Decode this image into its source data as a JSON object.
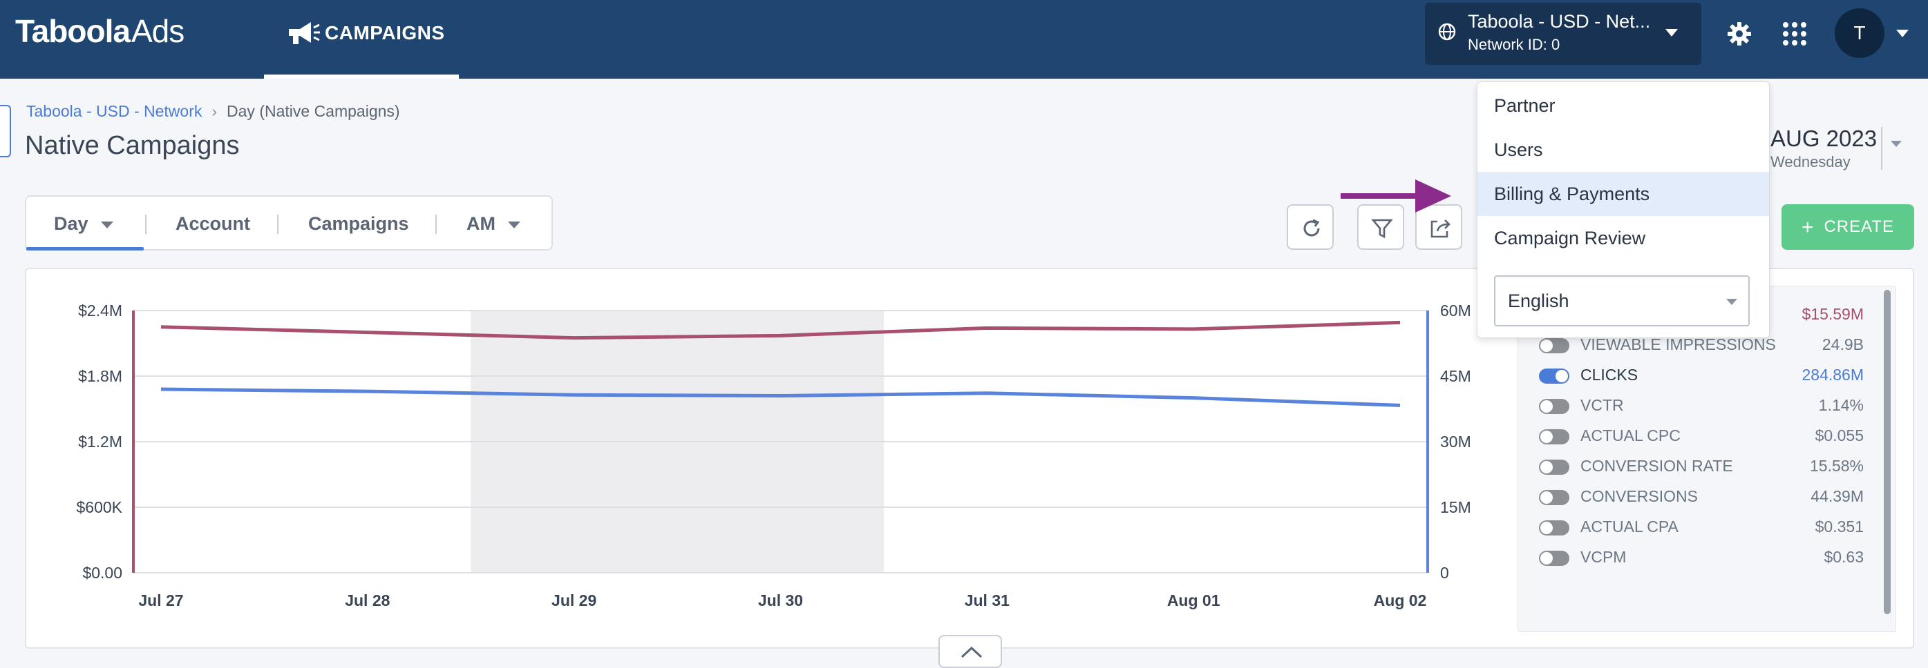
{
  "topbar": {
    "logo_bold": "Taboola",
    "logo_light": "Ads",
    "nav_campaigns": "CAMPAIGNS",
    "account_name": "Taboola - USD - Net...",
    "network_id": "Network ID: 0",
    "avatar_initial": "T"
  },
  "breadcrumb": {
    "root": "Taboola - USD - Network",
    "current": "Day (Native Campaigns)"
  },
  "page_title": "Native Campaigns",
  "date": {
    "month_year": "AUG 2023",
    "weekday": "Wednesday"
  },
  "tabs": [
    {
      "label": "Day"
    },
    {
      "label": "Account"
    },
    {
      "label": "Campaigns"
    },
    {
      "label": "AM"
    }
  ],
  "create_label": "CREATE",
  "menu": {
    "items": [
      "Partner",
      "Users",
      "Billing & Payments",
      "Campaign Review"
    ],
    "active_index": 2,
    "language": "English"
  },
  "chart_data": {
    "type": "line",
    "x": [
      "Jul 27",
      "Jul 28",
      "Jul 29",
      "Jul 30",
      "Jul 31",
      "Aug 01",
      "Aug 02"
    ],
    "y_left": {
      "ticks": [
        "$2.4M",
        "$1.8M",
        "$1.2M",
        "$600K",
        "$0.00"
      ],
      "range": [
        0,
        2400000
      ]
    },
    "y_right": {
      "ticks": [
        "60M",
        "45M",
        "30M",
        "15M",
        "0"
      ],
      "range": [
        0,
        60000000
      ]
    },
    "highlight_range": [
      "Jul 28",
      "Jul 30"
    ],
    "series": [
      {
        "axis": "left",
        "color": "#a8506e",
        "values": [
          2250000,
          2200000,
          2150000,
          2170000,
          2240000,
          2230000,
          2290000
        ]
      },
      {
        "axis": "right",
        "color": "#5a84dc",
        "values": [
          42000000,
          41500000,
          40700000,
          40500000,
          41100000,
          40000000,
          38300000
        ]
      }
    ]
  },
  "metrics": [
    {
      "name": "",
      "value": "$15.59M",
      "on": false,
      "color": "#a8506e"
    },
    {
      "name": "VIEWABLE IMPRESSIONS",
      "value": "24.9B",
      "on": false,
      "color": ""
    },
    {
      "name": "CLICKS",
      "value": "284.86M",
      "on": true,
      "color": "#4a7bd6"
    },
    {
      "name": "VCTR",
      "value": "1.14%",
      "on": false,
      "color": ""
    },
    {
      "name": "ACTUAL CPC",
      "value": "$0.055",
      "on": false,
      "color": ""
    },
    {
      "name": "CONVERSION RATE",
      "value": "15.58%",
      "on": false,
      "color": ""
    },
    {
      "name": "CONVERSIONS",
      "value": "44.39M",
      "on": false,
      "color": ""
    },
    {
      "name": "ACTUAL CPA",
      "value": "$0.351",
      "on": false,
      "color": ""
    },
    {
      "name": "VCPM",
      "value": "$0.63",
      "on": false,
      "color": ""
    }
  ]
}
